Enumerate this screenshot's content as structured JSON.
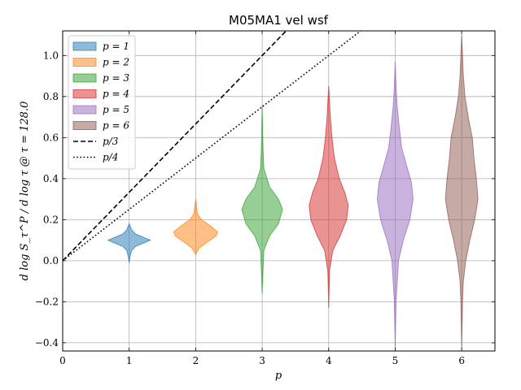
{
  "chart_data": {
    "type": "violin",
    "title": "M05MA1 vel wsf",
    "xlabel": "p",
    "ylabel": "d log S_τ^P / d log τ @ τ = 128.0",
    "xlim": [
      0,
      6.5
    ],
    "ylim": [
      -0.44,
      1.12
    ],
    "xticks": [
      0,
      1,
      2,
      3,
      4,
      5,
      6
    ],
    "xtick_labels": [
      "0",
      "1",
      "2",
      "3",
      "4",
      "5",
      "6"
    ],
    "yticks": [
      -0.4,
      -0.2,
      0.0,
      0.2,
      0.4,
      0.6,
      0.8,
      1.0
    ],
    "ytick_labels": [
      "−0.4",
      "−0.2",
      "0.0",
      "0.2",
      "0.4",
      "0.6",
      "0.8",
      "1.0"
    ],
    "grid": true,
    "legend_position": "top-left",
    "series": [
      {
        "name": "p = 1",
        "x": 1,
        "color": "#1f77b4",
        "min": -0.01,
        "max": 0.18,
        "profile": [
          [
            -0.01,
            0.0
          ],
          [
            0.02,
            0.01
          ],
          [
            0.05,
            0.03
          ],
          [
            0.07,
            0.08
          ],
          [
            0.09,
            0.2
          ],
          [
            0.1,
            0.26
          ],
          [
            0.11,
            0.2
          ],
          [
            0.13,
            0.08
          ],
          [
            0.15,
            0.03
          ],
          [
            0.18,
            0.0
          ]
        ]
      },
      {
        "name": "p = 2",
        "x": 2,
        "color": "#ff7f0e",
        "min": 0.03,
        "max": 0.3,
        "profile": [
          [
            0.03,
            0.0
          ],
          [
            0.06,
            0.04
          ],
          [
            0.09,
            0.14
          ],
          [
            0.12,
            0.25
          ],
          [
            0.14,
            0.27
          ],
          [
            0.17,
            0.18
          ],
          [
            0.2,
            0.07
          ],
          [
            0.23,
            0.02
          ],
          [
            0.27,
            0.01
          ],
          [
            0.3,
            0.0
          ]
        ]
      },
      {
        "name": "p = 3",
        "x": 3,
        "color": "#2ca02c",
        "min": -0.16,
        "max": 0.76,
        "profile": [
          [
            -0.16,
            0.0
          ],
          [
            -0.05,
            0.01
          ],
          [
            0.05,
            0.02
          ],
          [
            0.12,
            0.09
          ],
          [
            0.18,
            0.2
          ],
          [
            0.25,
            0.25
          ],
          [
            0.3,
            0.2
          ],
          [
            0.36,
            0.09
          ],
          [
            0.45,
            0.02
          ],
          [
            0.55,
            0.01
          ],
          [
            0.65,
            0.005
          ],
          [
            0.76,
            0.0
          ]
        ]
      },
      {
        "name": "p = 4",
        "x": 4,
        "color": "#d62728",
        "min": -0.23,
        "max": 0.85,
        "profile": [
          [
            -0.23,
            0.0
          ],
          [
            -0.05,
            0.01
          ],
          [
            0.05,
            0.05
          ],
          [
            0.12,
            0.14
          ],
          [
            0.2,
            0.22
          ],
          [
            0.27,
            0.24
          ],
          [
            0.33,
            0.2
          ],
          [
            0.4,
            0.13
          ],
          [
            0.5,
            0.07
          ],
          [
            0.6,
            0.04
          ],
          [
            0.7,
            0.02
          ],
          [
            0.85,
            0.0
          ]
        ]
      },
      {
        "name": "p = 5",
        "x": 5,
        "color": "#9467bd",
        "min": -0.43,
        "max": 0.97,
        "profile": [
          [
            -0.43,
            0.0
          ],
          [
            -0.2,
            0.01
          ],
          [
            0.0,
            0.04
          ],
          [
            0.1,
            0.1
          ],
          [
            0.2,
            0.18
          ],
          [
            0.3,
            0.22
          ],
          [
            0.38,
            0.2
          ],
          [
            0.45,
            0.15
          ],
          [
            0.55,
            0.08
          ],
          [
            0.65,
            0.05
          ],
          [
            0.75,
            0.025
          ],
          [
            0.85,
            0.01
          ],
          [
            0.97,
            0.0
          ]
        ]
      },
      {
        "name": "p = 6",
        "x": 6,
        "color": "#8c564b",
        "min": -0.43,
        "max": 1.1,
        "profile": [
          [
            -0.43,
            0.0
          ],
          [
            -0.2,
            0.01
          ],
          [
            -0.1,
            0.02
          ],
          [
            0.0,
            0.05
          ],
          [
            0.1,
            0.1
          ],
          [
            0.2,
            0.16
          ],
          [
            0.3,
            0.2
          ],
          [
            0.4,
            0.18
          ],
          [
            0.5,
            0.15
          ],
          [
            0.6,
            0.13
          ],
          [
            0.7,
            0.08
          ],
          [
            0.8,
            0.04
          ],
          [
            0.9,
            0.02
          ],
          [
            1.0,
            0.01
          ],
          [
            1.1,
            0.0
          ]
        ]
      }
    ],
    "reference_lines": [
      {
        "name": "p/3",
        "slope": 0.3333,
        "style": "dashed",
        "color": "#000000"
      },
      {
        "name": "p/4",
        "slope": 0.25,
        "style": "dotted",
        "color": "#000000"
      }
    ]
  }
}
